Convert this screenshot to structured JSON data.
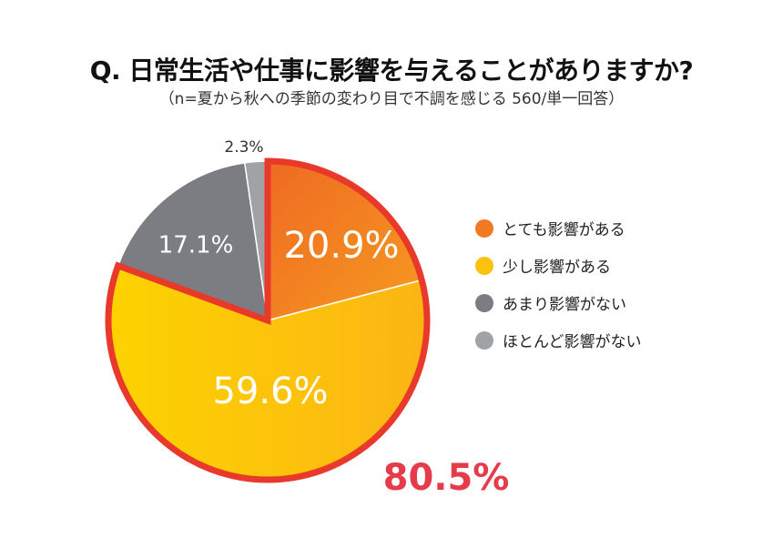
{
  "chart_data": {
    "type": "pie",
    "title": "Q. 日常生活や仕事に影響を与えることがありますか?",
    "subtitle": "（n=夏から秋への季節の変わり目で不調を感じる 560/単一回答）",
    "categories": [
      "とても影響がある",
      "少し影響がある",
      "あまり影響がない",
      "ほとんど影響がない"
    ],
    "values": [
      20.9,
      59.6,
      17.1,
      2.3
    ],
    "labels": [
      "20.9%",
      "59.6%",
      "17.1%",
      "2.3%"
    ],
    "colors": [
      "#f07a22",
      "#fdc20e",
      "#7b7d82",
      "#a0a2a6"
    ],
    "highlight": {
      "label": "80.5%",
      "includes": [
        0,
        1
      ],
      "color": "#e8392a",
      "text_color": "#e63b4a"
    },
    "legend_placement": "right"
  }
}
